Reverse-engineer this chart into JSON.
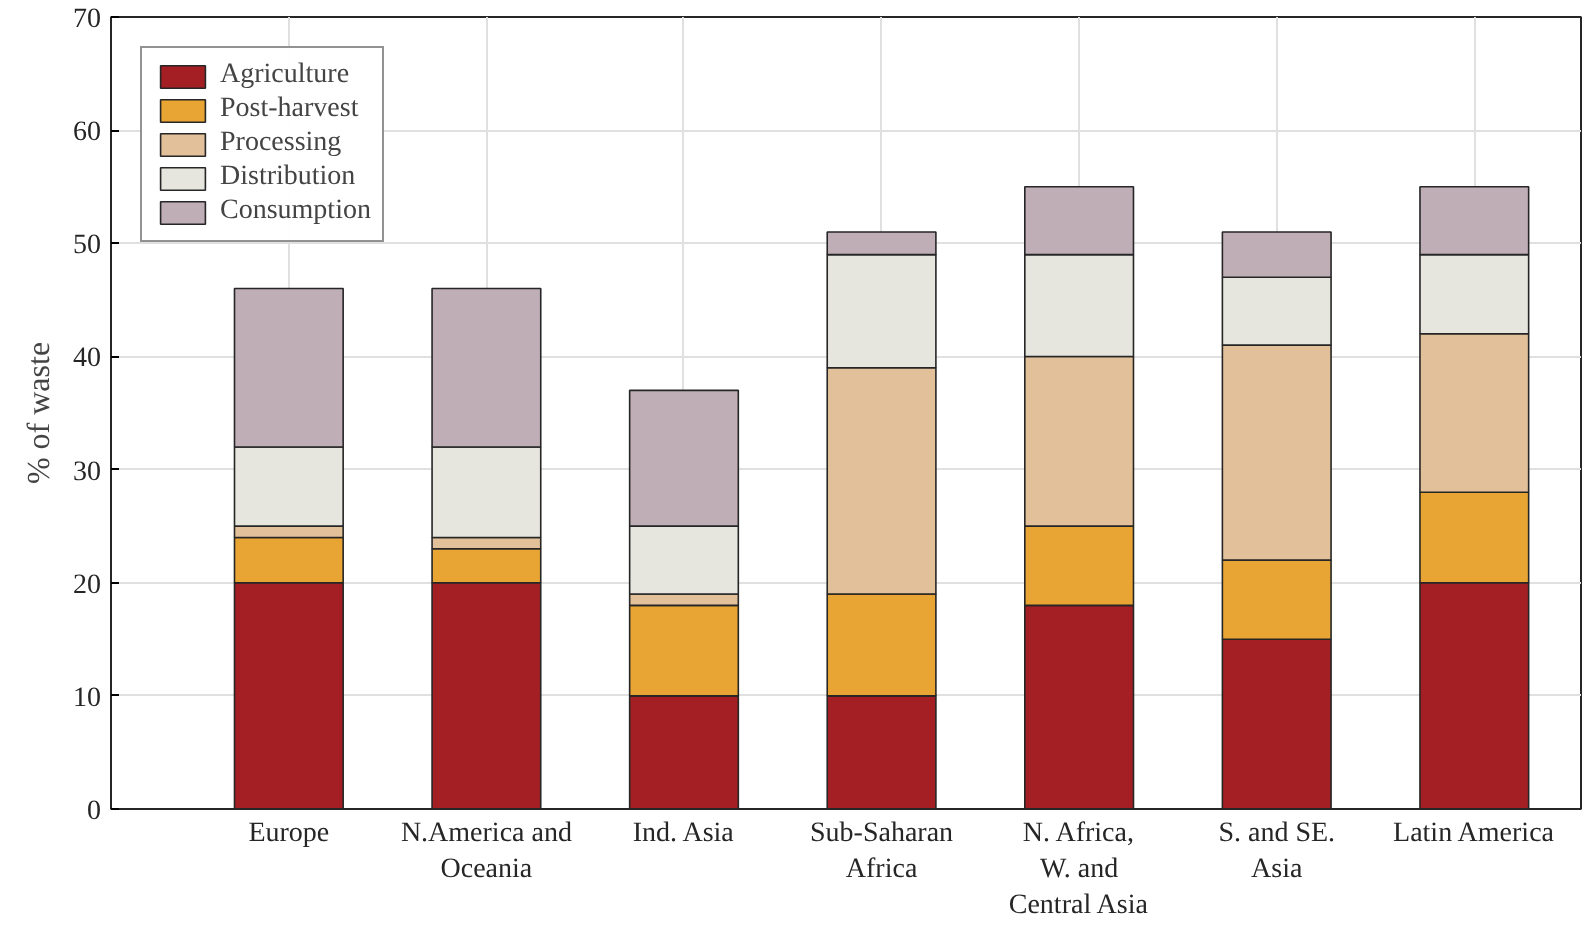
{
  "chart_data": {
    "type": "bar",
    "stacked": true,
    "ylabel": "% of waste",
    "categories": [
      "Europe",
      "N.America and\nOceania",
      "Ind. Asia",
      "Sub-Saharan\nAfrica",
      "N. Africa,\nW. and\nCentral Asia",
      "S. and SE.\nAsia",
      "Latin America"
    ],
    "series": [
      {
        "name": "Agriculture",
        "color": "#a31f24",
        "values": [
          20,
          20,
          10,
          10,
          18,
          15,
          20
        ]
      },
      {
        "name": "Post-harvest",
        "color": "#e8a534",
        "values": [
          4,
          3,
          8,
          9,
          7,
          7,
          8
        ]
      },
      {
        "name": "Processing",
        "color": "#e2c09a",
        "values": [
          1,
          1,
          1,
          20,
          15,
          19,
          14
        ]
      },
      {
        "name": "Distribution",
        "color": "#e6e6de",
        "values": [
          7,
          8,
          6,
          10,
          9,
          6,
          7
        ]
      },
      {
        "name": "Consumption",
        "color": "#bfaeb6",
        "values": [
          14,
          14,
          12,
          2,
          6,
          4,
          6
        ]
      }
    ],
    "ylim": [
      0,
      70
    ],
    "yticks": [
      0,
      10,
      20,
      30,
      40,
      50,
      60,
      70
    ],
    "grid": true,
    "legend": "top left"
  }
}
